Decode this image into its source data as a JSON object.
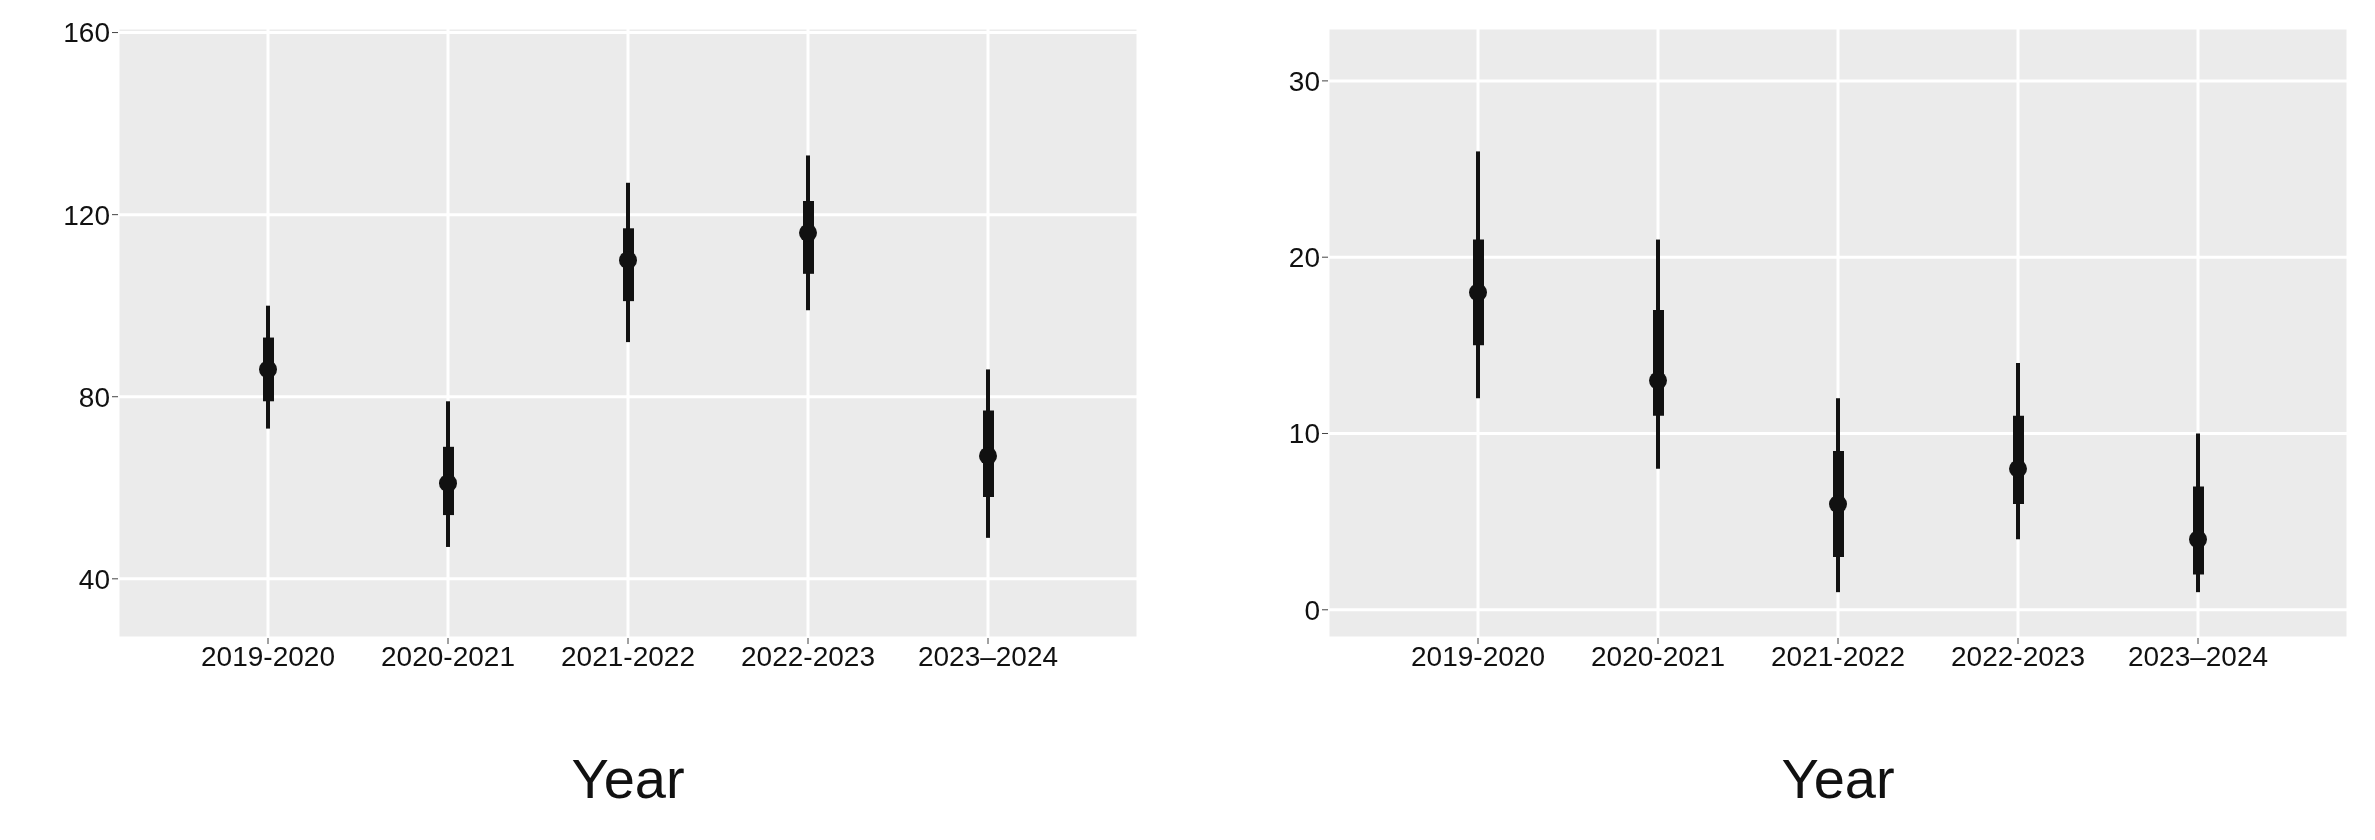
{
  "chart_data": [
    {
      "type": "box",
      "xlabel": "Year",
      "categories": [
        "2019-2020",
        "2020-2021",
        "2021-2022",
        "2022-2023",
        "2023–2024"
      ],
      "color": "#111111",
      "ylim": [
        27,
        161
      ],
      "yticks": [
        40,
        80,
        120,
        160
      ],
      "grid": true,
      "boxes": [
        {
          "low": 73,
          "q1": 79,
          "median": 86,
          "q3": 93,
          "high": 100
        },
        {
          "low": 47,
          "q1": 54,
          "median": 61,
          "q3": 69,
          "high": 79
        },
        {
          "low": 92,
          "q1": 101,
          "median": 110,
          "q3": 117,
          "high": 127
        },
        {
          "low": 99,
          "q1": 107,
          "median": 116,
          "q3": 123,
          "high": 133
        },
        {
          "low": 49,
          "q1": 58,
          "median": 67,
          "q3": 77,
          "high": 86
        }
      ]
    },
    {
      "type": "box",
      "xlabel": "Year",
      "categories": [
        "2019-2020",
        "2020-2021",
        "2021-2022",
        "2022-2023",
        "2023–2024"
      ],
      "color": "#111111",
      "ylim": [
        -1.6,
        33
      ],
      "yticks": [
        0,
        10,
        20,
        30
      ],
      "grid": true,
      "boxes": [
        {
          "low": 12,
          "q1": 15,
          "median": 18,
          "q3": 21,
          "high": 26
        },
        {
          "low": 8,
          "q1": 11,
          "median": 13,
          "q3": 17,
          "high": 21
        },
        {
          "low": 1,
          "q1": 3,
          "median": 6,
          "q3": 9,
          "high": 12
        },
        {
          "low": 4,
          "q1": 6,
          "median": 8,
          "q3": 11,
          "high": 14
        },
        {
          "low": 1,
          "q1": 2,
          "median": 4,
          "q3": 7,
          "high": 10
        }
      ]
    }
  ]
}
